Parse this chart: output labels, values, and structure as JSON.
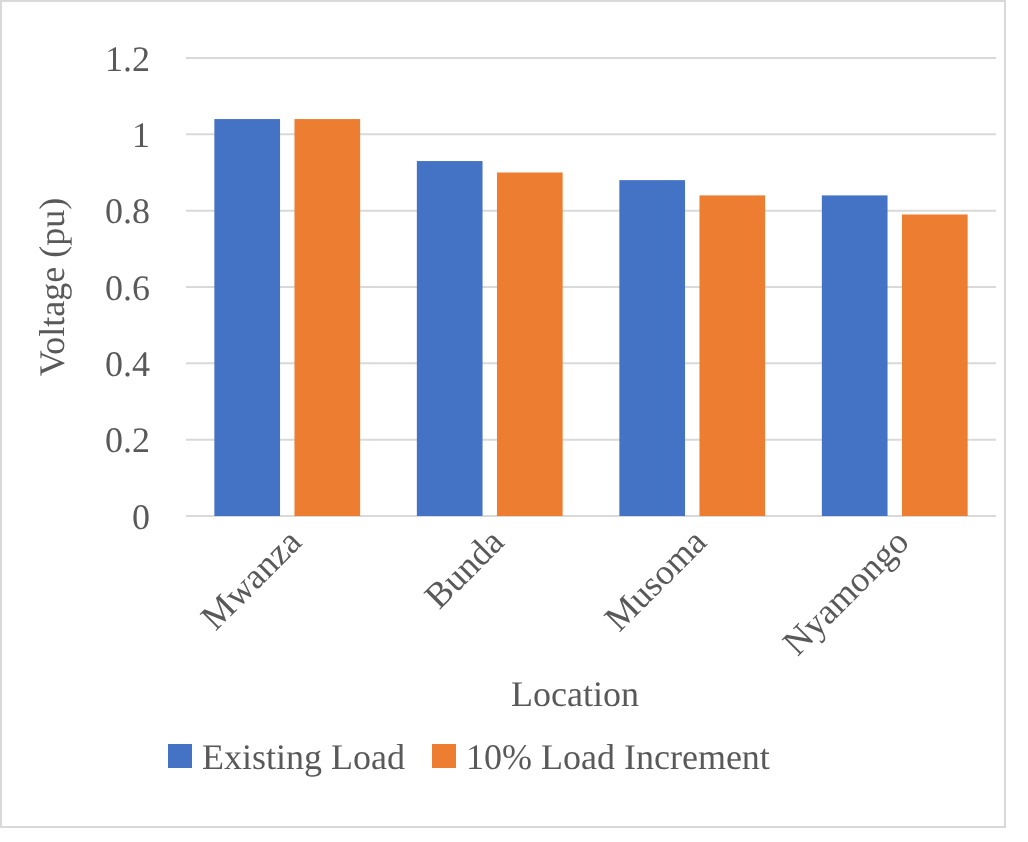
{
  "chart_data": {
    "type": "bar",
    "xlabel": "Location",
    "ylabel": "Voltage (pu)",
    "categories": [
      "Mwanza",
      "Bunda",
      "Musoma",
      "Nyamongo"
    ],
    "series": [
      {
        "name": "Existing Load",
        "color": "#4472c4",
        "values": [
          1.04,
          0.93,
          0.88,
          0.84
        ]
      },
      {
        "name": "10% Load Increment",
        "color": "#ed7d31",
        "values": [
          1.04,
          0.9,
          0.84,
          0.79
        ]
      }
    ],
    "ylim": [
      0,
      1.2
    ],
    "yticks": [
      0,
      0.2,
      0.4,
      0.6,
      0.8,
      1,
      1.2
    ],
    "grid": "y",
    "legend": "bottom"
  }
}
